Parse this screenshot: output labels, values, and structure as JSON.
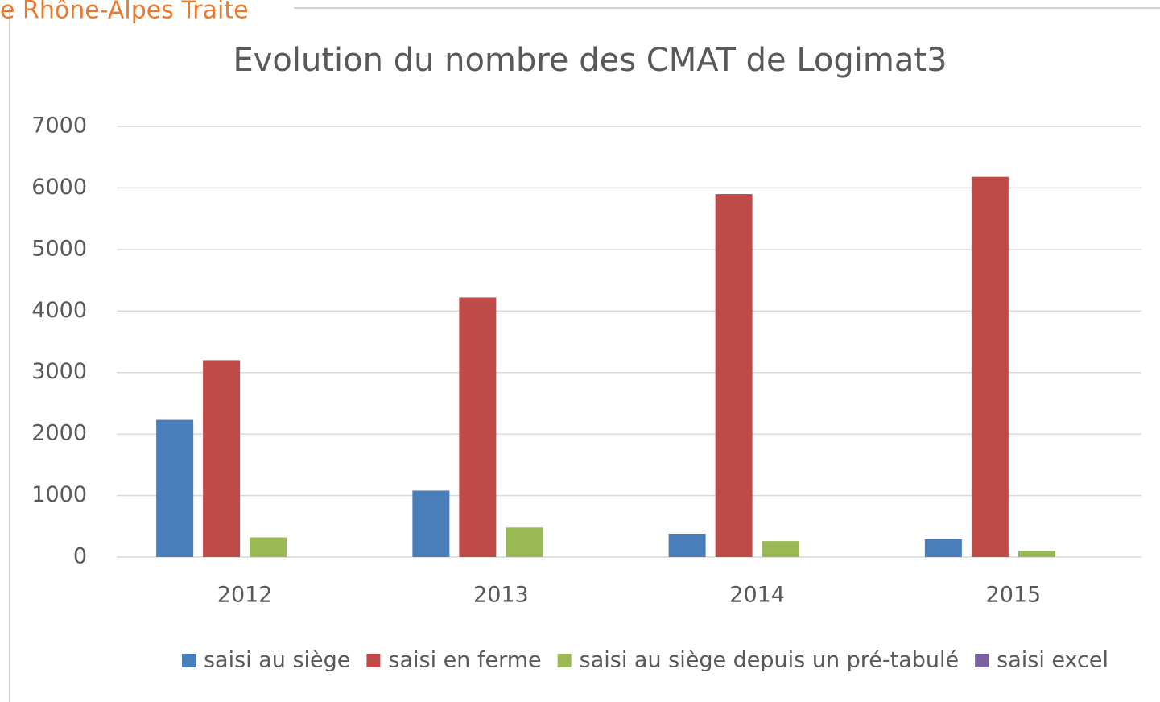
{
  "header": "e Rhône-Alpes Traite",
  "chart_data": {
    "type": "bar",
    "title": "Evolution du nombre des CMAT de Logimat3",
    "categories": [
      "2012",
      "2013",
      "2014",
      "2015"
    ],
    "series": [
      {
        "name": "saisi au siège",
        "color": "#4a7ebb",
        "values": [
          2230,
          1080,
          380,
          290
        ]
      },
      {
        "name": "saisi en ferme",
        "color": "#be4b48",
        "values": [
          3200,
          4220,
          5900,
          6180
        ]
      },
      {
        "name": "saisi au siège depuis un pré-tabulé",
        "color": "#98b954",
        "values": [
          320,
          480,
          260,
          100
        ]
      },
      {
        "name": "saisi excel",
        "color": "#7d60a0",
        "values": [
          0,
          0,
          0,
          0
        ]
      }
    ],
    "ylim": [
      0,
      7000
    ],
    "yticks": [
      0,
      1000,
      2000,
      3000,
      4000,
      5000,
      6000,
      7000
    ],
    "grid": true,
    "legend": "bottom"
  }
}
